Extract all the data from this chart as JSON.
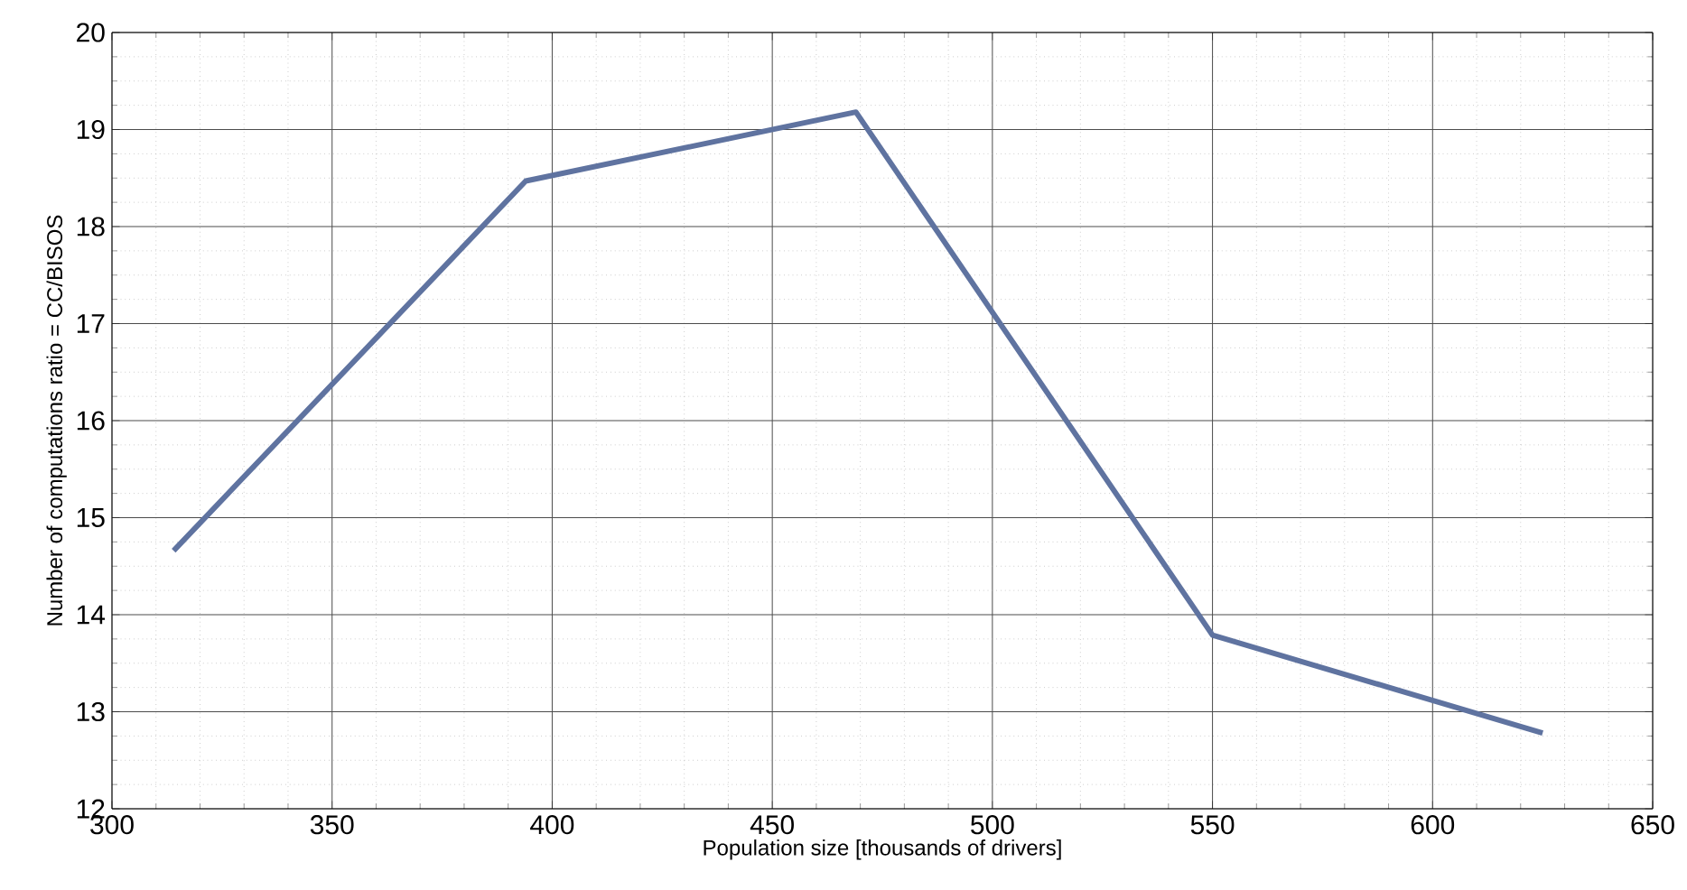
{
  "chart_data": {
    "type": "line",
    "xlabel": "Population size [thousands of drivers]",
    "ylabel": "Number of computations ratio = CC/BISOS",
    "x": [
      314,
      394,
      469,
      550,
      625
    ],
    "series": [
      {
        "color": "#5f73a0",
        "values": [
          14.66,
          18.47,
          19.18,
          13.79,
          12.78
        ]
      }
    ],
    "xlim": [
      300,
      650
    ],
    "xticks": [
      300,
      350,
      400,
      450,
      500,
      550,
      600,
      650
    ],
    "ylim": [
      12,
      20
    ],
    "yticks": [
      12,
      13,
      14,
      15,
      16,
      17,
      18,
      19,
      20
    ],
    "grid": true,
    "marker": "none",
    "line_style": "solid"
  }
}
